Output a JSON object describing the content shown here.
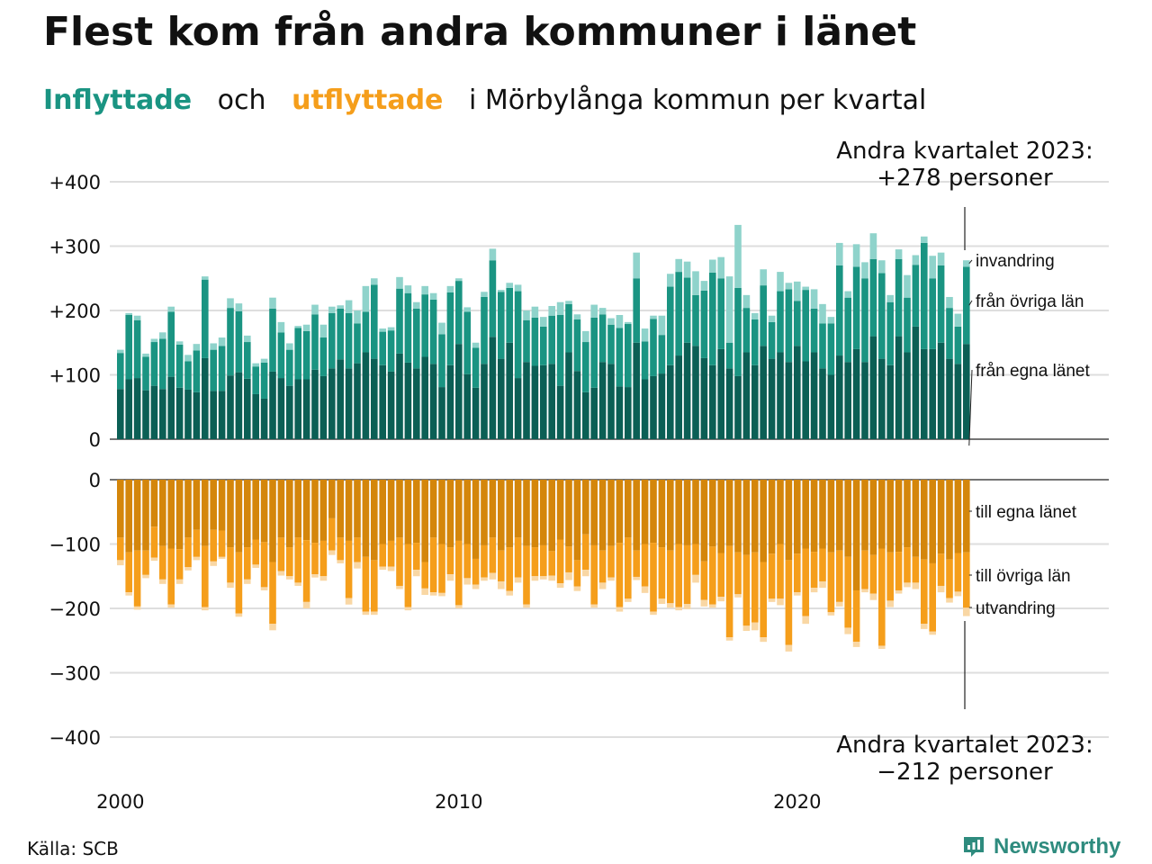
{
  "title": "Flest kom från andra kommuner i länet",
  "subtitle": {
    "part1": "Inflyttade",
    "part2": "och",
    "part3": "utflyttade",
    "part4": "i Mörbylånga kommun per kvartal"
  },
  "source": "Källa: SCB",
  "brand": "Newsworthy",
  "colors": {
    "in_egna": "#0b5f55",
    "in_ovriga": "#1a9482",
    "in_invandring": "#8fd3cb",
    "ut_egna": "#d4860b",
    "ut_ovriga": "#f59e1b",
    "ut_utvandring": "#f9d7a4",
    "grid": "#dedede"
  },
  "chart_data": {
    "type": "bar",
    "stacked": true,
    "x_start": "2000 Q1",
    "x_ticks": [
      "2000",
      "2010",
      "2020"
    ],
    "grid": true,
    "panels": [
      {
        "name": "Inflyttade",
        "y_ticks": [
          "+400",
          "+300",
          "+200",
          "+100",
          "0"
        ],
        "y_tick_values": [
          400,
          300,
          200,
          100,
          0
        ],
        "ylim": [
          0,
          400
        ],
        "annotation": [
          "Andra kvartalet 2023:",
          "+278 personer"
        ],
        "series": [
          {
            "name": "från egna länet",
            "values": [
              78,
              93,
              95,
              76,
              83,
              78,
              97,
              80,
              77,
              73,
              126,
              75,
              75,
              99,
              104,
              94,
              70,
              63,
              105,
              95,
              83,
              93,
              93,
              108,
              98,
              110,
              124,
              110,
              118,
              135,
              125,
              115,
              105,
              133,
              119,
              110,
              128,
              117,
              81,
              115,
              148,
              101,
              80,
              117,
              159,
              125,
              150,
              95,
              120,
              114,
              115,
              117,
              83,
              135,
              106,
              73,
              80,
              120,
              117,
              82,
              81,
              150,
              93,
              98,
              102,
              115,
              130,
              150,
              145,
              126,
              115,
              140,
              110,
              98,
              135,
              115,
              145,
              125,
              135,
              120,
              145,
              121,
              135,
              110,
              100,
              130,
              120,
              140,
              120,
              160,
              125,
              115,
              160,
              135,
              175,
              140,
              140,
              150,
              125,
              117,
              148
            ]
          },
          {
            "name": "från övriga län",
            "values": [
              56,
              100,
              90,
              52,
              68,
              78,
              101,
              67,
              44,
              65,
              122,
              64,
              70,
              105,
              95,
              57,
              43,
              56,
              98,
              71,
              56,
              80,
              75,
              86,
              60,
              86,
              79,
              86,
              62,
              63,
              115,
              52,
              64,
              101,
              108,
              93,
              97,
              100,
              82,
              113,
              98,
              97,
              62,
              104,
              119,
              104,
              85,
              135,
              65,
              75,
              60,
              75,
              110,
              75,
              80,
              78,
              109,
              74,
              61,
              91,
              98,
              100,
              59,
              89,
              60,
              122,
              130,
              101,
              79,
              105,
              144,
              110,
              40,
              137,
              69,
              71,
              94,
              57,
              95,
              113,
              70,
              111,
              68,
              70,
              80,
              140,
              100,
              128,
              130,
              120,
              133,
              98,
              120,
              85,
              96,
              165,
              110,
              120,
              79,
              58,
              120
            ]
          },
          {
            "name": "invandring",
            "values": [
              5,
              3,
              7,
              5,
              5,
              10,
              8,
              5,
              10,
              10,
              5,
              10,
              13,
              15,
              12,
              10,
              5,
              6,
              17,
              16,
              10,
              3,
              10,
              15,
              20,
              10,
              5,
              20,
              20,
              40,
              10,
              5,
              5,
              18,
              12,
              10,
              13,
              10,
              18,
              10,
              4,
              7,
              8,
              8,
              18,
              3,
              8,
              10,
              15,
              17,
              15,
              15,
              20,
              5,
              8,
              17,
              20,
              10,
              10,
              20,
              3,
              40,
              20,
              5,
              30,
              20,
              20,
              25,
              37,
              15,
              20,
              33,
              103,
              98,
              20,
              10,
              25,
              10,
              30,
              10,
              30,
              5,
              30,
              30,
              10,
              35,
              10,
              35,
              25,
              40,
              20,
              11,
              15,
              35,
              15,
              10,
              35,
              20,
              17,
              20,
              10
            ]
          }
        ]
      },
      {
        "name": "Utflyttade",
        "y_ticks": [
          "0",
          "−100",
          "−200",
          "−300",
          "−400"
        ],
        "y_tick_values": [
          0,
          -100,
          -200,
          -300,
          -400
        ],
        "ylim": [
          -400,
          0
        ],
        "annotation": [
          "Andra kvartalet 2023:",
          "−212 personer"
        ],
        "series": [
          {
            "name": "till egna länet",
            "values": [
              -90,
              -113,
              -110,
              -110,
              -73,
              -103,
              -107,
              -108,
              -90,
              -78,
              -103,
              -78,
              -79,
              -105,
              -113,
              -105,
              -93,
              -97,
              -128,
              -90,
              -105,
              -90,
              -94,
              -98,
              -95,
              -60,
              -90,
              -95,
              -90,
              -120,
              -125,
              -100,
              -95,
              -90,
              -100,
              -98,
              -128,
              -90,
              -100,
              -105,
              -95,
              -100,
              -123,
              -102,
              -90,
              -110,
              -105,
              -90,
              -103,
              -105,
              -102,
              -111,
              -93,
              -104,
              -125,
              -85,
              -102,
              -110,
              -103,
              -98,
              -90,
              -110,
              -100,
              -98,
              -105,
              -110,
              -100,
              -102,
              -100,
              -127,
              -104,
              -114,
              -103,
              -113,
              -117,
              -113,
              -128,
              -115,
              -100,
              -125,
              -115,
              -107,
              -112,
              -107,
              -113,
              -110,
              -120,
              -172,
              -110,
              -117,
              -107,
              -113,
              -112,
              -105,
              -120,
              -124,
              -130,
              -115,
              -124,
              -114,
              -113
            ]
          },
          {
            "name": "till övriga län",
            "values": [
              -35,
              -62,
              -87,
              -38,
              -48,
              -52,
              -87,
              -47,
              -46,
              -42,
              -95,
              -49,
              -41,
              -55,
              -95,
              -50,
              -39,
              -70,
              -96,
              -52,
              -45,
              -70,
              -96,
              -49,
              -55,
              -50,
              -35,
              -89,
              -38,
              -85,
              -80,
              -35,
              -40,
              -75,
              -98,
              -42,
              -41,
              -85,
              -76,
              -42,
              -100,
              -53,
              -40,
              -50,
              -55,
              -48,
              -68,
              -62,
              -91,
              -45,
              -48,
              -38,
              -68,
              -40,
              -41,
              -55,
              -92,
              -50,
              -49,
              -100,
              -95,
              -41,
              -66,
              -107,
              -80,
              -82,
              -98,
              -91,
              -48,
              -60,
              -90,
              -68,
              -142,
              -65,
              -110,
              -109,
              -117,
              -70,
              -85,
              -132,
              -60,
              -105,
              -56,
              -51,
              -93,
              -80,
              -110,
              -80,
              -60,
              -60,
              -151,
              -75,
              -60,
              -55,
              -40,
              -100,
              -106,
              -50,
              -60,
              -60,
              -86
            ]
          },
          {
            "name": "utvandring",
            "values": [
              -8,
              -5,
              -5,
              -5,
              -5,
              -7,
              -5,
              -7,
              -5,
              -5,
              -5,
              -7,
              -3,
              -8,
              -5,
              -7,
              -5,
              -5,
              -10,
              -7,
              -5,
              -5,
              -10,
              -5,
              -7,
              -7,
              -5,
              -10,
              -10,
              -5,
              -5,
              -5,
              -7,
              -5,
              -5,
              -10,
              -10,
              -5,
              -5,
              -10,
              -5,
              -10,
              -7,
              -5,
              -10,
              -12,
              -7,
              -8,
              -5,
              -7,
              -5,
              -8,
              -7,
              -12,
              -7,
              -10,
              -5,
              -10,
              -5,
              -7,
              -5,
              -5,
              -10,
              -5,
              -8,
              -7,
              -5,
              -8,
              -12,
              -10,
              -5,
              -7,
              -5,
              -5,
              -8,
              -12,
              -7,
              -5,
              -10,
              -10,
              -5,
              -12,
              -7,
              -10,
              -5,
              -7,
              -10,
              -8,
              -5,
              -10,
              -5,
              -10,
              -5,
              -7,
              -10,
              -8,
              -5,
              -10,
              -7,
              -7,
              -13
            ]
          }
        ]
      }
    ]
  }
}
